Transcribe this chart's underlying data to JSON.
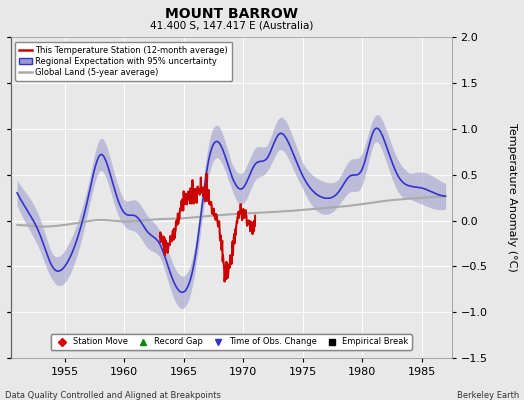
{
  "title": "MOUNT BARROW",
  "subtitle": "41.400 S, 147.417 E (Australia)",
  "ylabel": "Temperature Anomaly (°C)",
  "xlabel_left": "Data Quality Controlled and Aligned at Breakpoints",
  "xlabel_right": "Berkeley Earth",
  "xlim": [
    1950.5,
    1987.5
  ],
  "ylim": [
    -1.5,
    2.0
  ],
  "yticks": [
    -1.5,
    -1.0,
    -0.5,
    0.0,
    0.5,
    1.0,
    1.5,
    2.0
  ],
  "xticks": [
    1955,
    1960,
    1965,
    1970,
    1975,
    1980,
    1985
  ],
  "bg_color": "#e8e8e8",
  "grid_color": "#ffffff",
  "regional_color": "#3333cc",
  "regional_fill_color": "#9999cc",
  "red_color": "#cc0000",
  "global_color": "#aaaaaa",
  "legend_labels": [
    "This Temperature Station (12-month average)",
    "Regional Expectation with 95% uncertainty",
    "Global Land (5-year average)"
  ],
  "marker_legend": [
    {
      "label": "Station Move",
      "color": "#dd0000",
      "marker": "D"
    },
    {
      "label": "Record Gap",
      "color": "#008800",
      "marker": "^"
    },
    {
      "label": "Time of Obs. Change",
      "color": "#3333cc",
      "marker": "v"
    },
    {
      "label": "Empirical Break",
      "color": "#000000",
      "marker": "s"
    }
  ]
}
